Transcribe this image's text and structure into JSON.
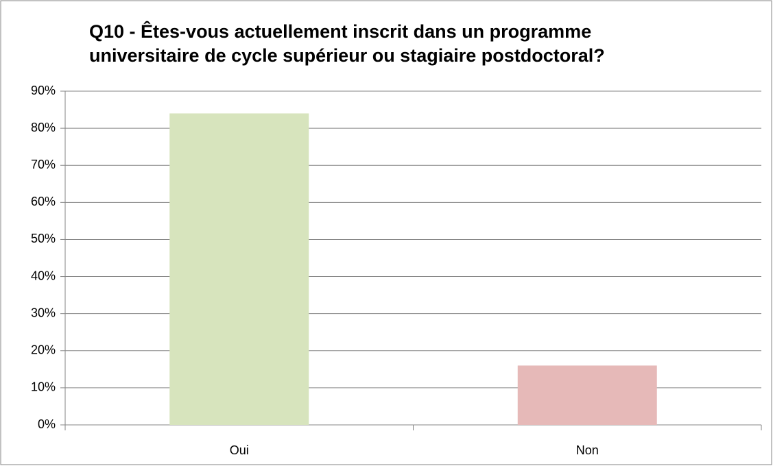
{
  "chart_data": {
    "type": "bar",
    "title": [
      "Q10 - Êtes-vous actuellement inscrit dans un programme",
      "universitaire de cycle supérieur ou stagiaire postdoctoral?"
    ],
    "categories": [
      "Oui",
      "Non"
    ],
    "values": [
      84,
      16
    ],
    "colors": [
      "#d7e4bd",
      "#e6b9b8"
    ],
    "ylim": [
      0,
      90
    ],
    "yticks": [
      {
        "value": 0,
        "label": "0%"
      },
      {
        "value": 10,
        "label": "10%"
      },
      {
        "value": 20,
        "label": "20%"
      },
      {
        "value": 30,
        "label": "30%"
      },
      {
        "value": 40,
        "label": "40%"
      },
      {
        "value": 50,
        "label": "50%"
      },
      {
        "value": 60,
        "label": "60%"
      },
      {
        "value": 70,
        "label": "70%"
      },
      {
        "value": 80,
        "label": "80%"
      },
      {
        "value": 90,
        "label": "90%"
      }
    ],
    "grid": true
  }
}
